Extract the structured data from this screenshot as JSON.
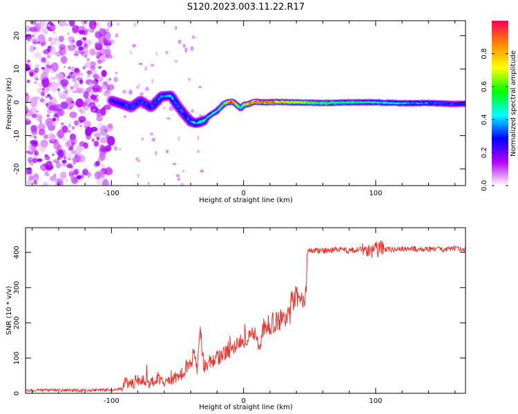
{
  "title": "S120.2023.003.11.22.R17",
  "colors": {
    "line": "#e8342f",
    "axes": "#000000",
    "colorbar_stops": [
      "#ffffff",
      "#b300ff",
      "#0000ff",
      "#00ffff",
      "#00ff00",
      "#ffff00",
      "#ff8800",
      "#ff0055"
    ]
  },
  "chart_data": [
    {
      "type": "heatmap",
      "xlabel": "Height of straight line (km)",
      "ylabel": "Frequency (Hz)",
      "xlim": [
        -165,
        168
      ],
      "ylim": [
        -25,
        24.5
      ],
      "x_ticks": [
        -100,
        0,
        100
      ],
      "x_tick_labels": [
        "-100",
        "0",
        "100"
      ],
      "y_ticks": [
        20,
        10,
        0,
        -10,
        -20
      ],
      "y_tick_labels": [
        "20",
        "10",
        "0",
        "-10",
        "-20"
      ],
      "colorbar": {
        "label": "Normalized spectral amplitude",
        "range": [
          0,
          1
        ],
        "ticks": [
          0,
          0.2,
          0.4,
          0.6,
          0.8
        ],
        "tick_labels": [
          "0.0",
          "0.2",
          "0.4",
          "0.6",
          "0.8"
        ]
      },
      "noise_region": {
        "x_range": [
          -165,
          -100
        ],
        "amplitude": 0.12
      },
      "ridge": {
        "x": [
          -100,
          -92,
          -85,
          -78,
          -70,
          -62,
          -55,
          -50,
          -45,
          -40,
          -36,
          -30,
          -25,
          -20,
          -15,
          -12,
          -8,
          -4,
          -2,
          0,
          4,
          8,
          15,
          25,
          40,
          60,
          80,
          100,
          120,
          140,
          160,
          168
        ],
        "freq": [
          0.5,
          -0.5,
          -1.5,
          0.5,
          -1.5,
          1.8,
          2.0,
          -1.0,
          -3.5,
          -5.8,
          -6.3,
          -5.5,
          -3.8,
          -2.5,
          -0.5,
          0.0,
          0.2,
          -1.2,
          -1.8,
          -0.8,
          -0.5,
          0.2,
          0.0,
          0.1,
          0.0,
          -0.2,
          0.0,
          0.0,
          -0.3,
          -0.2,
          -0.5,
          -0.4
        ],
        "amplitude": [
          0.25,
          0.3,
          0.3,
          0.3,
          0.3,
          0.35,
          0.4,
          0.35,
          0.3,
          0.35,
          0.4,
          0.45,
          0.45,
          0.5,
          0.6,
          0.9,
          0.95,
          0.6,
          0.5,
          0.7,
          0.85,
          0.95,
          0.9,
          0.8,
          0.7,
          0.55,
          0.5,
          0.45,
          0.4,
          0.35,
          0.3,
          0.3
        ]
      }
    },
    {
      "type": "line",
      "xlabel": "Height of straight line (km)",
      "ylabel": "SNR (10 * v/v)",
      "xlim": [
        -165,
        168
      ],
      "ylim": [
        0,
        470
      ],
      "x_ticks": [
        -100,
        0,
        100
      ],
      "x_tick_labels": [
        "-100",
        "0",
        "100"
      ],
      "y_ticks": [
        0,
        100,
        200,
        300,
        400
      ],
      "y_tick_labels": [
        "0",
        "100",
        "200",
        "300",
        "400"
      ],
      "series": [
        {
          "x": [
            -165,
            -150,
            -130,
            -110,
            -100,
            -92,
            -90,
            -85,
            -80,
            -75,
            -70,
            -65,
            -60,
            -55,
            -50,
            -45,
            -42,
            -40,
            -38,
            -35,
            -33,
            -30,
            -25,
            -20,
            -15,
            -10,
            -5,
            0,
            5,
            10,
            12,
            15,
            20,
            25,
            30,
            35,
            36,
            40,
            45,
            47,
            48,
            50,
            60,
            70,
            80,
            90,
            95,
            100,
            102,
            103,
            105,
            110,
            120,
            130,
            140,
            150,
            160,
            168
          ],
          "y": [
            8,
            9,
            8,
            9,
            10,
            12,
            30,
            25,
            40,
            35,
            30,
            45,
            35,
            30,
            50,
            60,
            85,
            70,
            120,
            65,
            200,
            75,
            90,
            100,
            110,
            125,
            140,
            150,
            165,
            170,
            120,
            185,
            195,
            205,
            210,
            215,
            265,
            270,
            270,
            260,
            400,
            405,
            405,
            408,
            405,
            410,
            400,
            412,
            400,
            420,
            410,
            408,
            410,
            410,
            408,
            410,
            410,
            410
          ]
        }
      ]
    }
  ]
}
